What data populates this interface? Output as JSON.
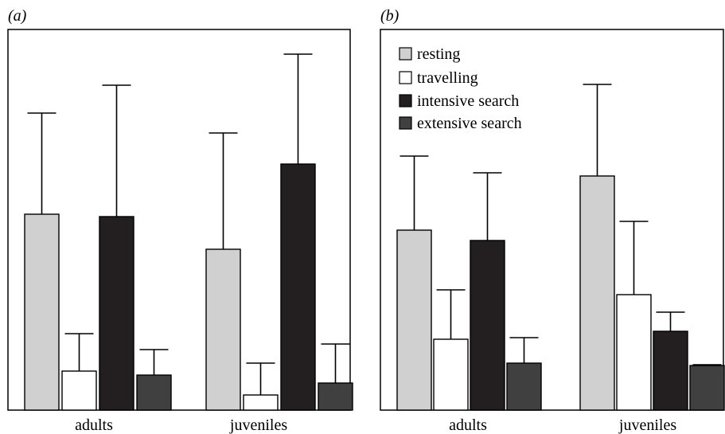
{
  "chart_data": [
    {
      "type": "bar",
      "panel_label": "(a)",
      "categories": [
        "adults",
        "juveniles"
      ],
      "series": [
        {
          "name": "resting",
          "color": "#d0d0d0",
          "values": [
            2.46,
            2.02
          ],
          "errors": [
            1.27,
            1.46
          ]
        },
        {
          "name": "travelling",
          "color": "#ffffff",
          "values": [
            0.49,
            0.19
          ],
          "errors": [
            0.47,
            0.4
          ]
        },
        {
          "name": "intensive search",
          "color": "#231f20",
          "values": [
            2.43,
            3.09
          ],
          "errors": [
            1.65,
            1.38
          ]
        },
        {
          "name": "extensive search",
          "color": "#404040",
          "values": [
            0.44,
            0.34
          ],
          "errors": [
            0.32,
            0.49
          ]
        }
      ],
      "ylim": [
        0,
        4.75
      ],
      "legend": false
    },
    {
      "type": "bar",
      "panel_label": "(b)",
      "categories": [
        "adults",
        "juveniles"
      ],
      "series": [
        {
          "name": "resting",
          "color": "#d0d0d0",
          "values": [
            2.26,
            2.94
          ],
          "errors": [
            0.93,
            1.15
          ]
        },
        {
          "name": "travelling",
          "color": "#ffffff",
          "values": [
            0.89,
            1.45
          ],
          "errors": [
            0.62,
            0.92
          ]
        },
        {
          "name": "intensive search",
          "color": "#231f20",
          "values": [
            2.13,
            0.99
          ],
          "errors": [
            0.85,
            0.24
          ]
        },
        {
          "name": "extensive search",
          "color": "#404040",
          "values": [
            0.59,
            0.56
          ],
          "errors": [
            0.32,
            0.01
          ]
        }
      ],
      "ylim": [
        0,
        4.75
      ],
      "legend": true,
      "legend_position": "top-left"
    }
  ]
}
